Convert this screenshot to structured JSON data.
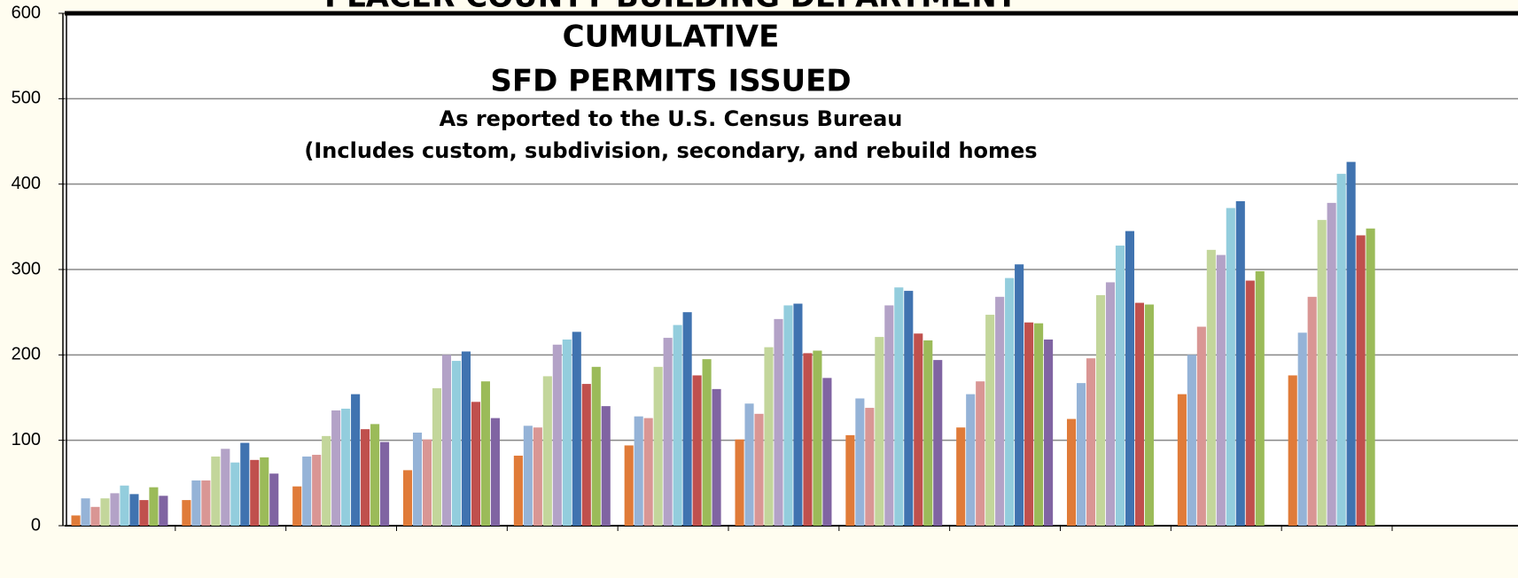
{
  "chart_data": {
    "type": "bar",
    "title": [
      "PLACER COUNTY BUILDING DEPARTMENT",
      "CUMULATIVE",
      "SFD PERMITS ISSUED"
    ],
    "subtitle": [
      "As reported to the U.S. Census Bureau",
      "(Includes custom, subdivision, secondary, and rebuild homes"
    ],
    "categories": [
      null,
      null,
      null,
      null,
      null,
      null,
      null,
      null,
      null,
      null,
      null,
      null
    ],
    "series": [
      {
        "color": "#e07b39",
        "values": [
          12,
          30,
          46,
          65,
          82,
          94,
          101,
          106,
          115,
          125,
          154,
          176
        ]
      },
      {
        "color": "#95b3d7",
        "values": [
          32,
          53,
          81,
          109,
          117,
          128,
          143,
          149,
          154,
          167,
          200,
          226
        ]
      },
      {
        "color": "#d99694",
        "values": [
          22,
          53,
          83,
          101,
          115,
          126,
          131,
          138,
          169,
          196,
          233,
          268
        ]
      },
      {
        "color": "#c3d69b",
        "values": [
          32,
          81,
          105,
          161,
          175,
          186,
          209,
          221,
          247,
          270,
          323,
          358
        ]
      },
      {
        "color": "#b3a2c7",
        "values": [
          38,
          90,
          135,
          200,
          212,
          220,
          242,
          258,
          268,
          285,
          317,
          378
        ]
      },
      {
        "color": "#93cddd",
        "values": [
          47,
          74,
          137,
          193,
          218,
          235,
          258,
          279,
          290,
          328,
          372,
          412
        ]
      },
      {
        "color": "#4073b0",
        "values": [
          37,
          97,
          154,
          204,
          227,
          250,
          260,
          275,
          306,
          345,
          380,
          426
        ]
      },
      {
        "color": "#c0504d",
        "values": [
          30,
          77,
          113,
          145,
          166,
          176,
          202,
          225,
          238,
          261,
          287,
          340
        ]
      },
      {
        "color": "#9bbb59",
        "values": [
          45,
          80,
          119,
          169,
          186,
          195,
          205,
          217,
          237,
          259,
          298,
          348
        ]
      },
      {
        "color": "#8064a2",
        "values": [
          35,
          61,
          98,
          126,
          140,
          160,
          173,
          194,
          218,
          null,
          null,
          null
        ]
      }
    ],
    "ylim": [
      0,
      600
    ],
    "yticks": [
      0,
      100,
      200,
      300,
      400,
      500,
      600
    ],
    "grid": true
  }
}
